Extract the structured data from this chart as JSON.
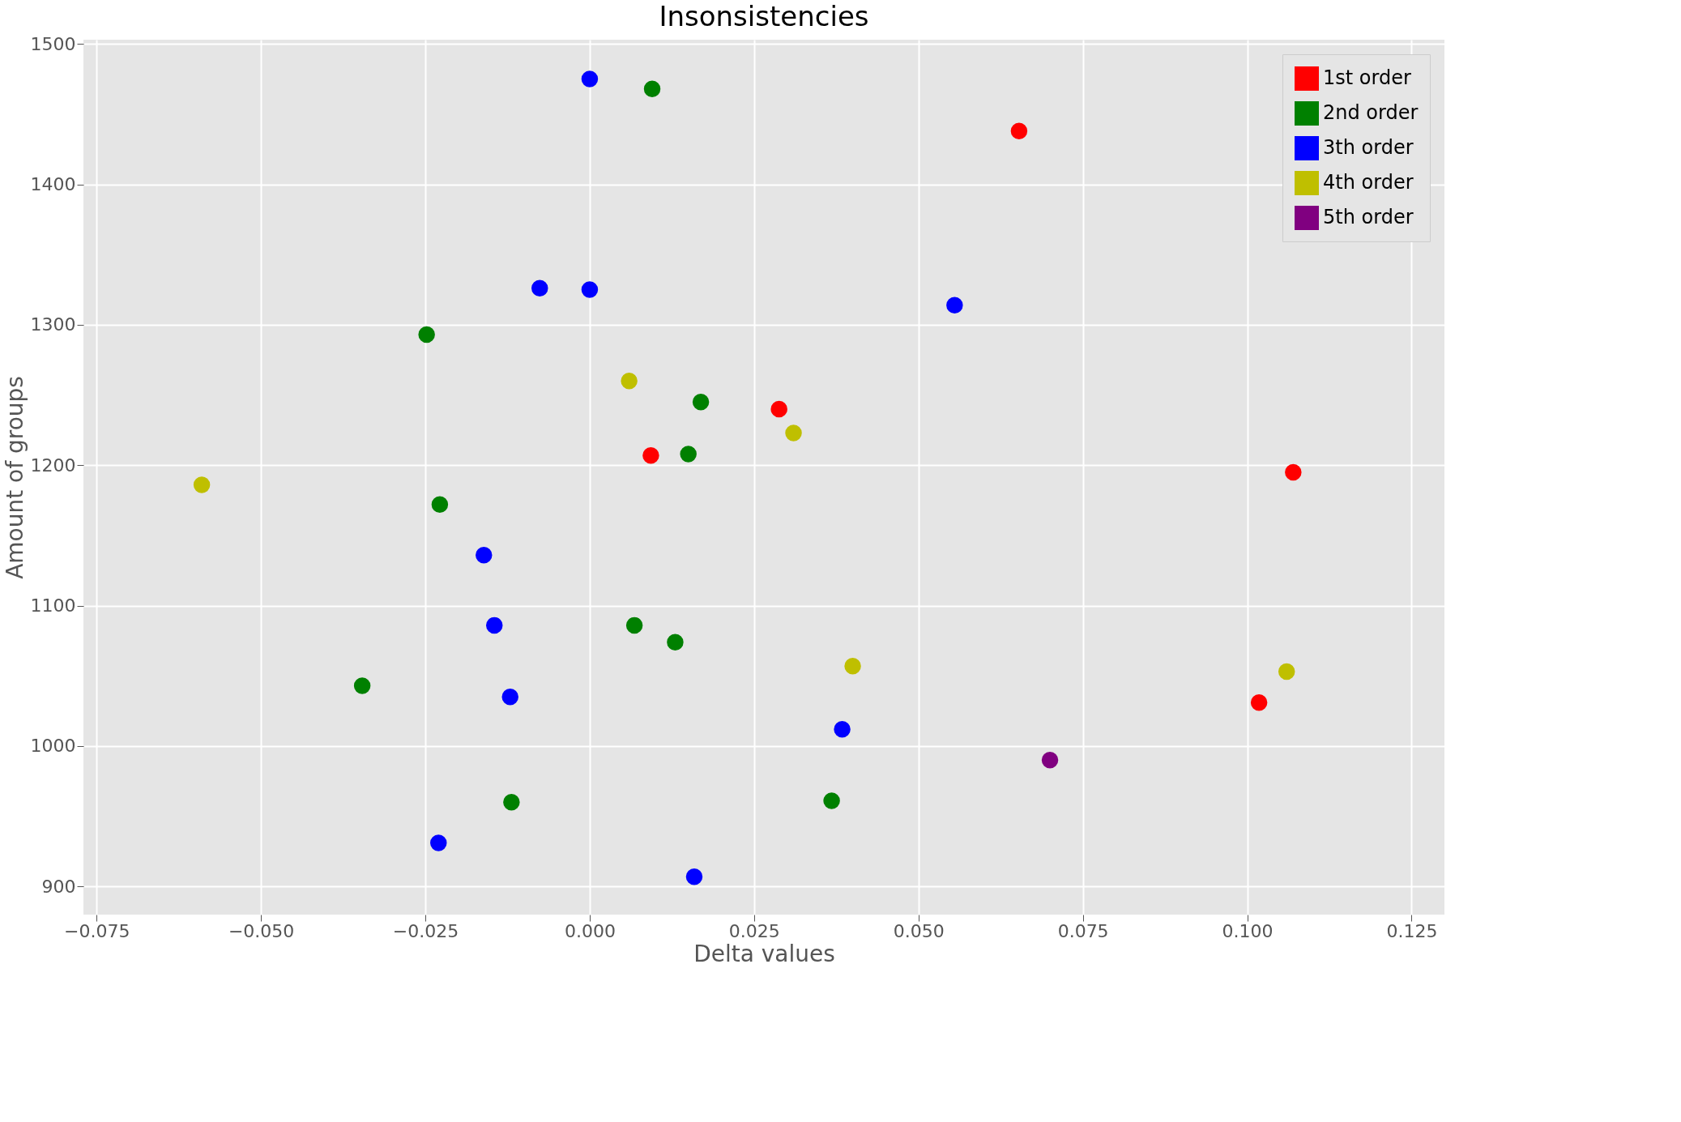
{
  "chart_data": {
    "type": "scatter",
    "title": "Insonsistencies",
    "xlabel": "Delta values",
    "ylabel": "Amount of groups",
    "xlim": [
      -0.077,
      0.13
    ],
    "ylim": [
      880,
      1503
    ],
    "xticks": [
      {
        "value": -0.075,
        "label": "−0.075"
      },
      {
        "value": -0.05,
        "label": "−0.050"
      },
      {
        "value": -0.025,
        "label": "−0.025"
      },
      {
        "value": 0,
        "label": "0.000"
      },
      {
        "value": 0.025,
        "label": "0.025"
      },
      {
        "value": 0.05,
        "label": "0.050"
      },
      {
        "value": 0.075,
        "label": "0.075"
      },
      {
        "value": 0.1,
        "label": "0.100"
      },
      {
        "value": 0.125,
        "label": "0.125"
      }
    ],
    "yticks": [
      900,
      1000,
      1100,
      1200,
      1300,
      1400,
      1500
    ],
    "grid": true,
    "legend": "top right",
    "marker": "circle",
    "series": [
      {
        "name": "1st order",
        "color": "#ff0000",
        "x": [
          0.0653,
          0.0288,
          0.0093,
          0.107,
          0.1018
        ],
        "values": [
          1438,
          1240,
          1207,
          1195,
          1031
        ]
      },
      {
        "name": "2nd order",
        "color": "#008000",
        "x": [
          0.0095,
          -0.0248,
          0.0169,
          0.015,
          -0.0228,
          0.0068,
          0.013,
          -0.0346,
          -0.0119,
          0.0368
        ],
        "values": [
          1468,
          1293,
          1245,
          1208,
          1172,
          1086,
          1074,
          1043,
          960,
          961
        ]
      },
      {
        "name": "3th order",
        "color": "#0000ff",
        "x": [
          0.0,
          -0.0076,
          0.0,
          0.0555,
          -0.0161,
          -0.0145,
          -0.0121,
          0.0384,
          -0.023,
          0.0159
        ],
        "values": [
          1475,
          1326,
          1325,
          1314,
          1136,
          1086,
          1035,
          1012,
          931,
          907
        ]
      },
      {
        "name": "4th order",
        "color": "#bfbf00",
        "x": [
          0.006,
          0.031,
          -0.059,
          0.04,
          0.106
        ],
        "values": [
          1260,
          1223,
          1186,
          1057,
          1053
        ]
      },
      {
        "name": "5th order",
        "color": "#800080",
        "x": [
          0.07
        ],
        "values": [
          990
        ]
      }
    ]
  }
}
